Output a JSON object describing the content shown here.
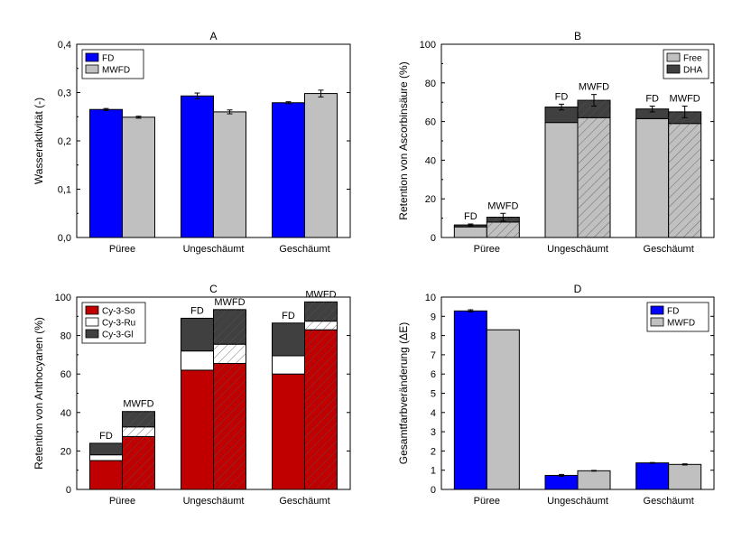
{
  "chart_data": [
    {
      "panel": "A",
      "type": "bar",
      "title": "A",
      "xlabel": "",
      "ylabel": "Wasseraktivität (-)",
      "ylim": [
        0,
        0.4
      ],
      "yticks": [
        0.0,
        0.1,
        0.2,
        0.3,
        0.4
      ],
      "ytick_labels": [
        "0,0",
        "0,1",
        "0,2",
        "0,3",
        "0,4"
      ],
      "categories": [
        "Püree",
        "Ungeschäumt",
        "Geschäumt"
      ],
      "legend": "top-left",
      "series": [
        {
          "name": "FD",
          "color": "#0000ff",
          "values": [
            0.265,
            0.293,
            0.279
          ],
          "errors": [
            0.002,
            0.006,
            0.002
          ]
        },
        {
          "name": "MWFD",
          "color": "#c0c0c0",
          "values": [
            0.249,
            0.26,
            0.298
          ],
          "errors": [
            0.002,
            0.004,
            0.007
          ]
        }
      ]
    },
    {
      "panel": "B",
      "type": "bar",
      "stacked": true,
      "title": "B",
      "xlabel": "",
      "ylabel": "Retention von Ascorbinsäure (%)",
      "ylim": [
        0,
        100
      ],
      "yticks": [
        0,
        20,
        40,
        60,
        80,
        100
      ],
      "ytick_labels": [
        "0",
        "20",
        "40",
        "60",
        "80",
        "100"
      ],
      "categories": [
        "Püree",
        "Ungeschäumt",
        "Geschäumt"
      ],
      "group_labels": [
        "FD",
        "MWFD"
      ],
      "legend": "top-right",
      "stack_series": [
        {
          "name": "Free",
          "color": "#c0c0c0",
          "FD": [
            5.5,
            59.5,
            61.5
          ],
          "MWFD": [
            8.0,
            62.0,
            59.0
          ]
        },
        {
          "name": "DHA",
          "color": "#404040",
          "FD": [
            1.0,
            8.0,
            5.0
          ],
          "MWFD": [
            2.5,
            9.0,
            6.0
          ]
        }
      ],
      "totals_errors": {
        "FD": [
          0.5,
          1.5,
          1.5
        ],
        "MWFD": [
          2.0,
          3.0,
          3.0
        ]
      }
    },
    {
      "panel": "C",
      "type": "bar",
      "stacked": true,
      "title": "C",
      "xlabel": "",
      "ylabel": "Retention von Anthocyanen (%)",
      "ylim": [
        0,
        100
      ],
      "yticks": [
        0,
        20,
        40,
        60,
        80,
        100
      ],
      "ytick_labels": [
        "0",
        "20",
        "40",
        "60",
        "80",
        "100"
      ],
      "categories": [
        "Püree",
        "Ungeschäumt",
        "Geschäumt"
      ],
      "group_labels": [
        "FD",
        "MWFD"
      ],
      "legend": "top-left",
      "stack_series": [
        {
          "name": "Cy-3-So",
          "color": "#c00000",
          "FD": [
            15.0,
            62.0,
            60.0
          ],
          "MWFD": [
            27.5,
            65.5,
            83.0
          ]
        },
        {
          "name": "Cy-3-Ru",
          "color": "#ffffff",
          "FD": [
            3.0,
            10.0,
            9.5
          ],
          "MWFD": [
            5.0,
            10.0,
            4.5
          ]
        },
        {
          "name": "Cy-3-Gl",
          "color": "#404040",
          "FD": [
            6.0,
            17.0,
            17.0
          ],
          "MWFD": [
            8.0,
            18.0,
            10.0
          ]
        }
      ]
    },
    {
      "panel": "D",
      "type": "bar",
      "title": "D",
      "xlabel": "",
      "ylabel": "Gesamtfarbveränderung (ΔE)",
      "ylim": [
        0,
        10
      ],
      "yticks": [
        0,
        1,
        2,
        3,
        4,
        5,
        6,
        7,
        8,
        9,
        10
      ],
      "ytick_labels": [
        "0",
        "1",
        "2",
        "3",
        "4",
        "5",
        "6",
        "7",
        "8",
        "9",
        "10"
      ],
      "categories": [
        "Püree",
        "Ungeschäumt",
        "Geschäumt"
      ],
      "legend": "top-right",
      "series": [
        {
          "name": "FD",
          "color": "#0000ff",
          "values": [
            9.28,
            0.73,
            1.38
          ],
          "errors": [
            0.06,
            0.05,
            0.02
          ]
        },
        {
          "name": "MWFD",
          "color": "#c0c0c0",
          "values": [
            8.3,
            0.97,
            1.3
          ],
          "errors": [
            0.0,
            0.02,
            0.03
          ]
        }
      ]
    }
  ]
}
